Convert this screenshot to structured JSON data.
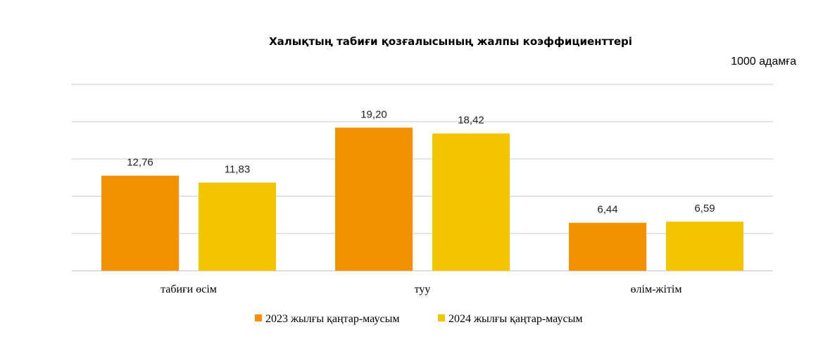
{
  "chart_data": {
    "type": "bar",
    "title": "Халықтың табиғи қозғалысының жалпы коэффициенттері",
    "unit_label": "1000 адамға",
    "categories": [
      "табиғи өсім",
      "туу",
      "өлім-жітім"
    ],
    "series": [
      {
        "name": "2023 жылғы қаңтар-маусым",
        "color": "#F39200",
        "values": [
          12.76,
          19.2,
          6.44
        ],
        "labels": [
          "12,76",
          "19,20",
          "6,44"
        ]
      },
      {
        "name": "2024 жылғы қаңтар-маусым",
        "color": "#F5C400",
        "values": [
          11.83,
          18.42,
          6.59
        ],
        "labels": [
          "11,83",
          "18,42",
          "6,59"
        ]
      }
    ],
    "ylim": [
      0,
      25
    ],
    "ytick_step": 5,
    "grid": true,
    "legend": "bottom",
    "xlabel": "",
    "ylabel": ""
  }
}
